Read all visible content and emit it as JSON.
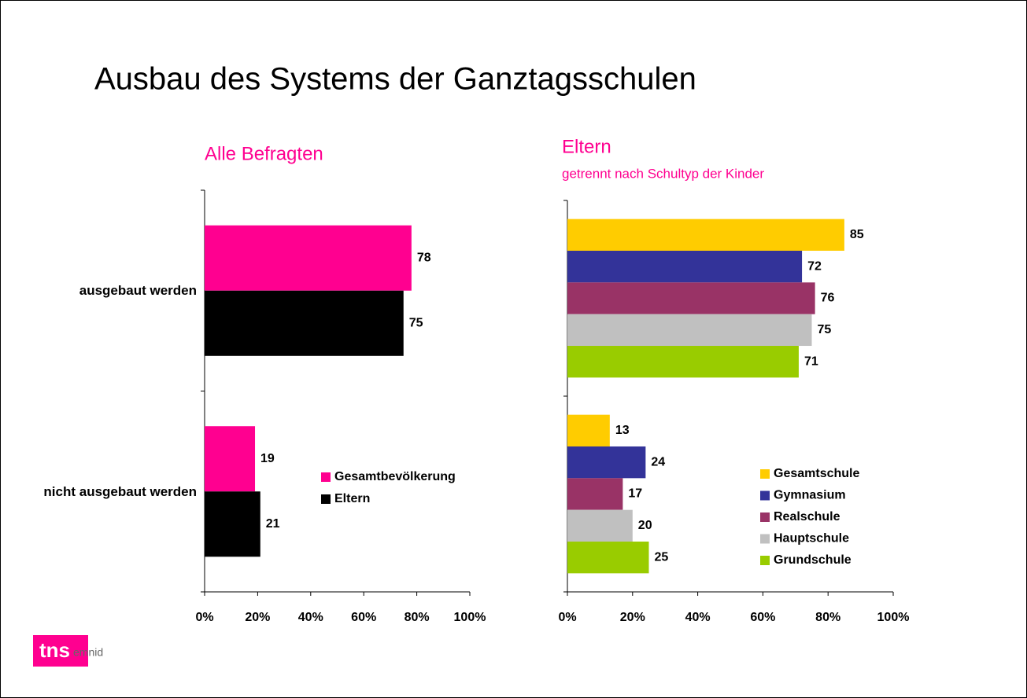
{
  "title": "Ausbau des Systems der Ganztagsschulen",
  "logo": {
    "brand": "tns",
    "sub": "emnid"
  },
  "chart_data": [
    {
      "type": "bar",
      "orientation": "horizontal",
      "title": "Alle Befragten",
      "categories": [
        "ausgebaut werden",
        "nicht ausgebaut werden"
      ],
      "series": [
        {
          "name": "Gesamtbevölkerung",
          "color": "#ff0090",
          "values": [
            78,
            19
          ]
        },
        {
          "name": "Eltern",
          "color": "#000000",
          "values": [
            75,
            21
          ]
        }
      ],
      "xlim": [
        0,
        100
      ],
      "xticks": [
        {
          "value": 0,
          "label": "0%"
        },
        {
          "value": 20,
          "label": "20%"
        },
        {
          "value": 40,
          "label": "40%"
        },
        {
          "value": 60,
          "label": "60%"
        },
        {
          "value": 80,
          "label": "80%"
        },
        {
          "value": 100,
          "label": "100%"
        }
      ],
      "legend": "right"
    },
    {
      "type": "bar",
      "orientation": "horizontal",
      "title": "Eltern",
      "subtitle": "getrennt nach Schultyp der Kinder",
      "categories": [
        null,
        null
      ],
      "series": [
        {
          "name": "Gesamtschule",
          "color": "#ffcc00",
          "values": [
            85,
            13
          ]
        },
        {
          "name": "Gymnasium",
          "color": "#333399",
          "values": [
            72,
            24
          ]
        },
        {
          "name": "Realschule",
          "color": "#993366",
          "values": [
            76,
            17
          ]
        },
        {
          "name": "Hauptschule",
          "color": "#c0c0c0",
          "values": [
            75,
            20
          ]
        },
        {
          "name": "Grundschule",
          "color": "#99cc00",
          "values": [
            71,
            25
          ]
        }
      ],
      "xlim": [
        0,
        100
      ],
      "xticks": [
        {
          "value": 0,
          "label": "0%"
        },
        {
          "value": 20,
          "label": "20%"
        },
        {
          "value": 40,
          "label": "40%"
        },
        {
          "value": 60,
          "label": "60%"
        },
        {
          "value": 80,
          "label": "80%"
        },
        {
          "value": 100,
          "label": "100%"
        }
      ],
      "legend": "right"
    }
  ]
}
